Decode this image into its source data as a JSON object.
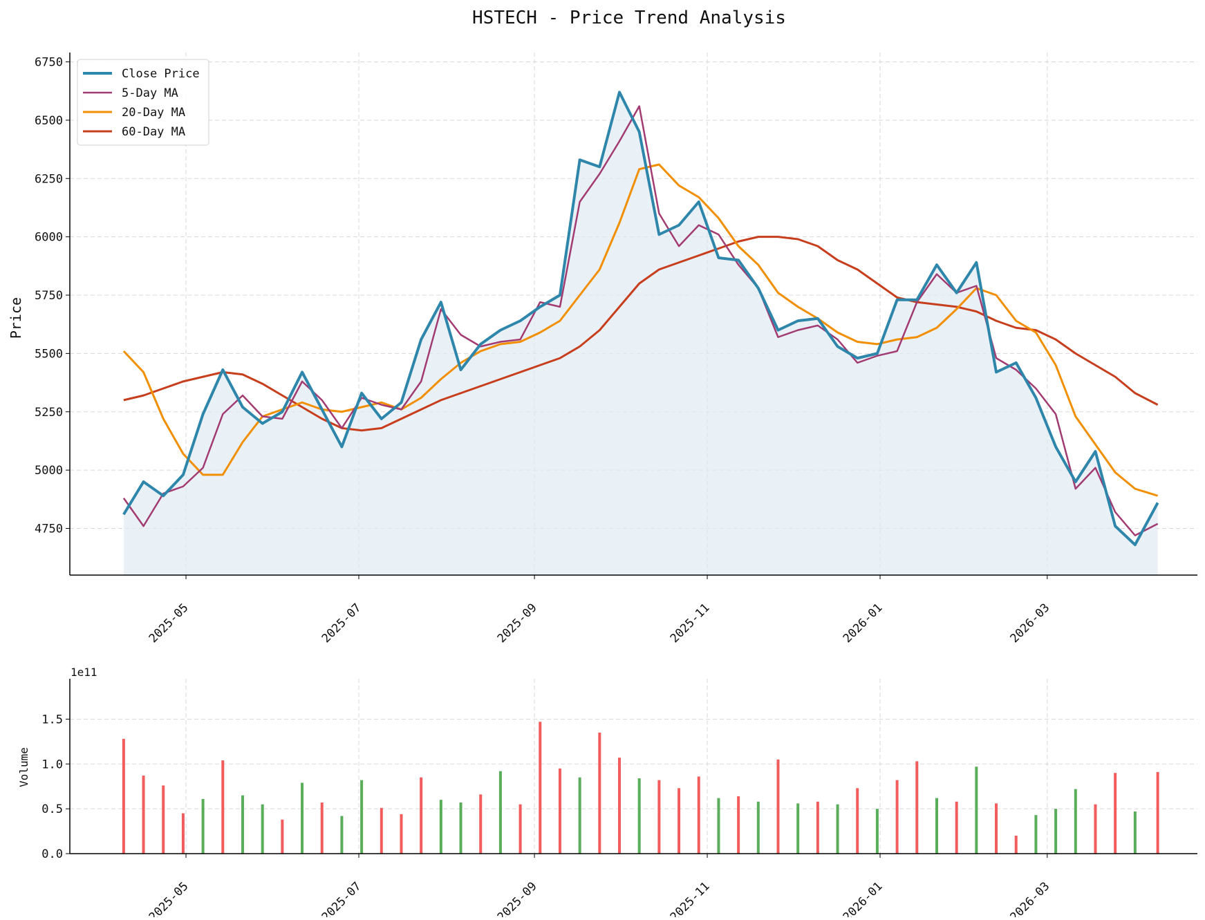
{
  "title": "HSTECH - Price Trend Analysis",
  "colors": {
    "close": "#2e86ab",
    "ma5": "#a23b72",
    "ma20": "#f18f01",
    "ma60": "#c73e1d",
    "fill": "#dfeaf2",
    "vol_up": "#5aad5a",
    "vol_down": "#f25c5c",
    "grid": "#d8d8d8"
  },
  "price_panel": {
    "ylabel": "Price",
    "yticks": [
      "4750",
      "5000",
      "5250",
      "5500",
      "5750",
      "6000",
      "6250",
      "6500",
      "6750"
    ],
    "legend": [
      "Close Price",
      "5-Day MA",
      "20-Day MA",
      "60-Day MA"
    ]
  },
  "volume_panel": {
    "ylabel": "Volume",
    "offset_text": "1e11",
    "yticks": [
      "0.0",
      "0.5",
      "1.0",
      "1.5"
    ]
  },
  "xticks": [
    "2025-05",
    "2025-07",
    "2025-09",
    "2025-11",
    "2026-01",
    "2026-03"
  ],
  "chart_data": [
    {
      "type": "line",
      "title": "HSTECH - Price Trend Analysis",
      "xlabel": "",
      "ylabel": "Price",
      "ylim": [
        4550,
        6790
      ],
      "xlim": [
        "2025-03-21",
        "2026-04-23"
      ],
      "grid": true,
      "legend_position": "top-left",
      "x": [
        "2025-04-09",
        "2025-04-16",
        "2025-04-23",
        "2025-04-30",
        "2025-05-07",
        "2025-05-14",
        "2025-05-21",
        "2025-05-28",
        "2025-06-04",
        "2025-06-11",
        "2025-06-18",
        "2025-06-25",
        "2025-07-02",
        "2025-07-09",
        "2025-07-16",
        "2025-07-23",
        "2025-07-30",
        "2025-08-06",
        "2025-08-13",
        "2025-08-20",
        "2025-08-27",
        "2025-09-03",
        "2025-09-10",
        "2025-09-17",
        "2025-09-24",
        "2025-10-01",
        "2025-10-08",
        "2025-10-15",
        "2025-10-22",
        "2025-10-29",
        "2025-11-05",
        "2025-11-12",
        "2025-11-19",
        "2025-11-26",
        "2025-12-03",
        "2025-12-10",
        "2025-12-17",
        "2025-12-24",
        "2025-12-31",
        "2026-01-07",
        "2026-01-14",
        "2026-01-21",
        "2026-01-28",
        "2026-02-04",
        "2026-02-11",
        "2026-02-18",
        "2026-02-25",
        "2026-03-04",
        "2026-03-11",
        "2026-03-18",
        "2026-03-25",
        "2026-04-01",
        "2026-04-09"
      ],
      "series": [
        {
          "name": "Close Price",
          "values": [
            4810,
            4950,
            4890,
            4980,
            5240,
            5430,
            5270,
            5200,
            5250,
            5420,
            5260,
            5100,
            5330,
            5220,
            5290,
            5560,
            5720,
            5430,
            5540,
            5600,
            5640,
            5700,
            5750,
            6330,
            6300,
            6620,
            6450,
            6010,
            6050,
            6150,
            5910,
            5900,
            5780,
            5600,
            5640,
            5650,
            5530,
            5480,
            5500,
            5730,
            5730,
            5880,
            5760,
            5890,
            5420,
            5460,
            5310,
            5100,
            4950,
            5080,
            4760,
            4680,
            4860
          ]
        },
        {
          "name": "5-Day MA",
          "values": [
            4880,
            4760,
            4900,
            4930,
            5010,
            5240,
            5320,
            5230,
            5220,
            5380,
            5300,
            5180,
            5310,
            5280,
            5260,
            5380,
            5690,
            5580,
            5530,
            5550,
            5560,
            5720,
            5700,
            6150,
            6270,
            6410,
            6560,
            6100,
            5960,
            6050,
            6010,
            5880,
            5780,
            5570,
            5600,
            5620,
            5560,
            5460,
            5490,
            5510,
            5720,
            5840,
            5760,
            5790,
            5480,
            5430,
            5350,
            5240,
            4920,
            5010,
            4820,
            4720,
            4770
          ]
        },
        {
          "name": "20-Day MA",
          "values": [
            5510,
            5420,
            5220,
            5070,
            4980,
            4980,
            5120,
            5230,
            5260,
            5290,
            5260,
            5250,
            5270,
            5290,
            5260,
            5310,
            5390,
            5460,
            5510,
            5540,
            5550,
            5590,
            5640,
            5750,
            5860,
            6060,
            6290,
            6310,
            6220,
            6170,
            6080,
            5960,
            5880,
            5760,
            5700,
            5650,
            5590,
            5550,
            5540,
            5560,
            5570,
            5610,
            5690,
            5780,
            5750,
            5640,
            5590,
            5450,
            5230,
            5110,
            4990,
            4920,
            4890
          ]
        },
        {
          "name": "60-Day MA",
          "values": [
            5300,
            5320,
            5350,
            5380,
            5400,
            5420,
            5410,
            5370,
            5320,
            5270,
            5220,
            5180,
            5170,
            5180,
            5220,
            5260,
            5300,
            5330,
            5360,
            5390,
            5420,
            5450,
            5480,
            5530,
            5600,
            5700,
            5800,
            5860,
            5890,
            5920,
            5950,
            5980,
            6000,
            6000,
            5990,
            5960,
            5900,
            5860,
            5800,
            5740,
            5720,
            5710,
            5700,
            5680,
            5640,
            5610,
            5600,
            5560,
            5500,
            5450,
            5400,
            5330,
            5280
          ]
        }
      ]
    },
    {
      "type": "bar",
      "xlabel": "",
      "ylabel": "Volume",
      "ylim": [
        0,
        195000000000.0
      ],
      "grid": true,
      "x": [
        "2025-04-09",
        "2025-04-16",
        "2025-04-23",
        "2025-04-30",
        "2025-05-07",
        "2025-05-14",
        "2025-05-21",
        "2025-05-28",
        "2025-06-04",
        "2025-06-11",
        "2025-06-18",
        "2025-06-25",
        "2025-07-02",
        "2025-07-09",
        "2025-07-16",
        "2025-07-23",
        "2025-07-30",
        "2025-08-06",
        "2025-08-13",
        "2025-08-20",
        "2025-08-27",
        "2025-09-03",
        "2025-09-10",
        "2025-09-17",
        "2025-09-24",
        "2025-10-01",
        "2025-10-08",
        "2025-10-15",
        "2025-10-22",
        "2025-10-29",
        "2025-11-05",
        "2025-11-12",
        "2025-11-19",
        "2025-11-26",
        "2025-12-03",
        "2025-12-10",
        "2025-12-17",
        "2025-12-24",
        "2025-12-31",
        "2026-01-07",
        "2026-01-14",
        "2026-01-21",
        "2026-01-28",
        "2026-02-04",
        "2026-02-11",
        "2026-02-18",
        "2026-02-25",
        "2026-03-04",
        "2026-03-11",
        "2026-03-18",
        "2026-03-25",
        "2026-04-01",
        "2026-04-09"
      ],
      "series": [
        {
          "name": "",
          "values": [
            128000000000.0,
            87000000000.0,
            76000000000.0,
            45000000000.0,
            61000000000.0,
            104000000000.0,
            65000000000.0,
            55000000000.0,
            38000000000.0,
            79000000000.0,
            57000000000.0,
            42000000000.0,
            82000000000.0,
            51000000000.0,
            44000000000.0,
            85000000000.0,
            60000000000.0,
            57000000000.0,
            66000000000.0,
            92000000000.0,
            55000000000.0,
            147000000000.0,
            95000000000.0,
            85000000000.0,
            135000000000.0,
            107000000000.0,
            84000000000.0,
            82000000000.0,
            73000000000.0,
            86000000000.0,
            62000000000.0,
            64000000000.0,
            58000000000.0,
            105000000000.0,
            56000000000.0,
            58000000000.0,
            55000000000.0,
            73000000000.0,
            50000000000.0,
            82000000000.0,
            103000000000.0,
            62000000000.0,
            58000000000.0,
            97000000000.0,
            56000000000.0,
            20000000000.0,
            43000000000.0,
            50000000000.0,
            72000000000.0,
            55000000000.0,
            90000000000.0,
            47000000000.0,
            91000000000.0
          ],
          "colors": [
            "down",
            "down",
            "down",
            "down",
            "up",
            "down",
            "up",
            "up",
            "down",
            "up",
            "down",
            "up",
            "up",
            "down",
            "down",
            "down",
            "up",
            "up",
            "down",
            "up",
            "down",
            "down",
            "down",
            "up",
            "down",
            "down",
            "up",
            "down",
            "down",
            "down",
            "up",
            "down",
            "up",
            "down",
            "up",
            "down",
            "up",
            "down",
            "up",
            "down",
            "down",
            "up",
            "down",
            "up",
            "down",
            "down",
            "up",
            "up",
            "up",
            "down",
            "down",
            "up",
            "down"
          ]
        }
      ]
    }
  ]
}
